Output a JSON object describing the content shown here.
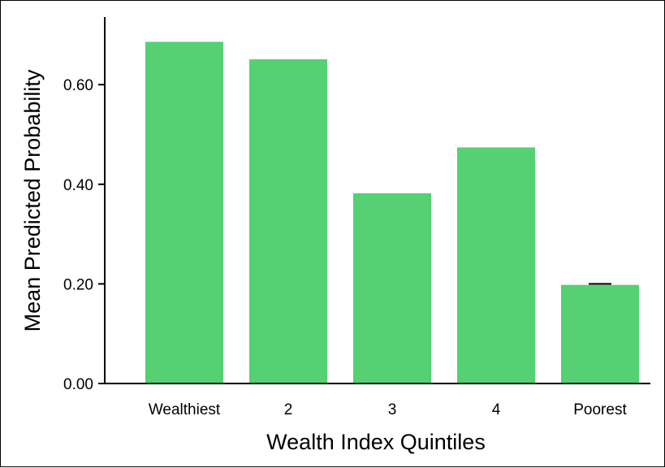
{
  "chart_data": {
    "type": "bar",
    "categories": [
      "Wealthiest",
      "2",
      "3",
      "4",
      "Poorest"
    ],
    "values": [
      0.686,
      0.651,
      0.382,
      0.474,
      0.198
    ],
    "error_bars": [
      null,
      null,
      null,
      null,
      0.2
    ],
    "title": "",
    "xlabel": "Wealth Index Quintiles",
    "ylabel": "Mean Predicted Probability",
    "ylim": [
      0,
      0.74
    ],
    "yticks": [
      0,
      0.2,
      0.4,
      0.6
    ],
    "ytick_labels": [
      "0.00",
      "0.20",
      "0.40",
      "0.60"
    ],
    "grid": false,
    "bar_color": "#55d072"
  }
}
